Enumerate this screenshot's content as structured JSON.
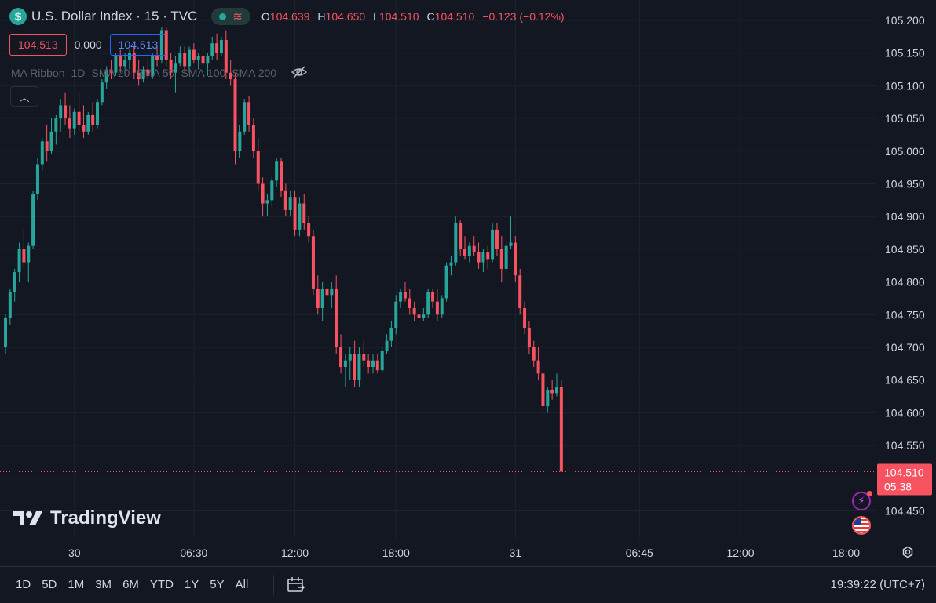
{
  "header": {
    "symbol_icon": "$",
    "title": "U.S. Dollar Index · 15 · TVC",
    "ohlc": {
      "o_label": "O",
      "o": "104.639",
      "h_label": "H",
      "h": "104.650",
      "l_label": "L",
      "l": "104.510",
      "c_label": "C",
      "c": "104.510",
      "change": "−0.123 (−0.12%)"
    },
    "bid": "104.513",
    "spread": "0.000",
    "ask": "104.513",
    "indicator": [
      "MA Ribbon",
      "1D",
      "SMA 20",
      "SMA 50",
      "SMA 100",
      "SMA 200"
    ],
    "collapse_icon": "chevron-up-icon"
  },
  "brand": {
    "logo_text": "TradingView"
  },
  "toolbar": {
    "timeframes": [
      "1D",
      "5D",
      "1M",
      "3M",
      "6M",
      "YTD",
      "1Y",
      "5Y",
      "All"
    ],
    "clock": "19:39:22 (UTC+7)"
  },
  "colors": {
    "up": "#26a69a",
    "down": "#f7525f",
    "bg": "#131722",
    "grid": "#1e222d",
    "axis_text": "#d1d4dc"
  },
  "chart_data": {
    "type": "candlestick",
    "title": "U.S. Dollar Index · 15 · TVC",
    "ylim": [
      104.42,
      105.22
    ],
    "yticks": [
      "105.200",
      "105.150",
      "105.100",
      "105.050",
      "105.000",
      "104.950",
      "104.900",
      "104.850",
      "104.800",
      "104.750",
      "104.700",
      "104.650",
      "104.600",
      "104.550",
      "104.500",
      "104.450"
    ],
    "xticks": [
      {
        "label": "30",
        "index": 15
      },
      {
        "label": "06:30",
        "index": 41
      },
      {
        "label": "12:00",
        "index": 63
      },
      {
        "label": "18:00",
        "index": 85
      },
      {
        "label": "31",
        "index": 111
      },
      {
        "label": "06:45",
        "index": 138
      },
      {
        "label": "12:00",
        "index": 160
      },
      {
        "label": "18:00",
        "index": 183
      }
    ],
    "last_price": {
      "value": 104.51,
      "label": "104.510",
      "countdown": "05:38"
    },
    "grid": true,
    "candles": [
      [
        104.7,
        104.75,
        104.69,
        104.745
      ],
      [
        104.745,
        104.79,
        104.735,
        104.785
      ],
      [
        104.785,
        104.82,
        104.77,
        104.815
      ],
      [
        104.815,
        104.86,
        104.8,
        104.85
      ],
      [
        104.85,
        104.88,
        104.82,
        104.83
      ],
      [
        104.83,
        104.86,
        104.8,
        104.855
      ],
      [
        104.855,
        104.94,
        104.85,
        104.935
      ],
      [
        104.935,
        104.99,
        104.925,
        104.98
      ],
      [
        104.98,
        105.02,
        104.97,
        105.015
      ],
      [
        105.015,
        105.04,
        104.985,
        105.0
      ],
      [
        105.0,
        105.05,
        104.995,
        105.03
      ],
      [
        105.03,
        105.055,
        105.01,
        105.05
      ],
      [
        105.05,
        105.08,
        105.03,
        105.07
      ],
      [
        105.07,
        105.09,
        105.04,
        105.05
      ],
      [
        105.05,
        105.07,
        105.02,
        105.035
      ],
      [
        105.035,
        105.065,
        105.025,
        105.06
      ],
      [
        105.06,
        105.09,
        105.03,
        105.04
      ],
      [
        105.04,
        105.07,
        105.02,
        105.03
      ],
      [
        105.03,
        105.06,
        105.025,
        105.055
      ],
      [
        105.055,
        105.075,
        105.03,
        105.04
      ],
      [
        105.04,
        105.08,
        105.035,
        105.075
      ],
      [
        105.075,
        105.11,
        105.07,
        105.105
      ],
      [
        105.105,
        105.13,
        105.095,
        105.125
      ],
      [
        105.125,
        105.14,
        105.11,
        105.12
      ],
      [
        105.12,
        105.15,
        105.115,
        105.145
      ],
      [
        105.145,
        105.155,
        105.12,
        105.13
      ],
      [
        105.13,
        105.15,
        105.115,
        105.14
      ],
      [
        105.14,
        105.155,
        105.125,
        105.15
      ],
      [
        105.15,
        105.16,
        105.11,
        105.12
      ],
      [
        105.12,
        105.14,
        105.1,
        105.11
      ],
      [
        105.11,
        105.13,
        105.105,
        105.125
      ],
      [
        105.125,
        105.14,
        105.11,
        105.115
      ],
      [
        105.115,
        105.15,
        105.11,
        105.145
      ],
      [
        105.145,
        105.16,
        105.13,
        105.14
      ],
      [
        105.14,
        105.19,
        105.135,
        105.185
      ],
      [
        105.185,
        105.19,
        105.13,
        105.14
      ],
      [
        105.14,
        105.15,
        105.11,
        105.12
      ],
      [
        105.12,
        105.145,
        105.09,
        105.135
      ],
      [
        105.135,
        105.16,
        105.13,
        105.15
      ],
      [
        105.15,
        105.16,
        105.12,
        105.13
      ],
      [
        105.13,
        105.16,
        105.12,
        105.155
      ],
      [
        105.155,
        105.165,
        105.135,
        105.14
      ],
      [
        105.14,
        105.15,
        105.125,
        105.145
      ],
      [
        105.145,
        105.16,
        105.13,
        105.135
      ],
      [
        105.135,
        105.15,
        105.115,
        105.145
      ],
      [
        105.145,
        105.175,
        105.14,
        105.165
      ],
      [
        105.165,
        105.18,
        105.14,
        105.15
      ],
      [
        105.15,
        105.175,
        105.145,
        105.17
      ],
      [
        105.17,
        105.185,
        105.11,
        105.12
      ],
      [
        105.12,
        105.14,
        105.1,
        105.11
      ],
      [
        105.11,
        105.12,
        104.98,
        105.0
      ],
      [
        105.0,
        105.04,
        104.99,
        105.03
      ],
      [
        105.03,
        105.08,
        105.025,
        105.075
      ],
      [
        105.075,
        105.085,
        105.03,
        105.04
      ],
      [
        105.04,
        105.05,
        104.99,
        105.0
      ],
      [
        105.0,
        105.02,
        104.94,
        104.95
      ],
      [
        104.95,
        104.96,
        104.9,
        104.92
      ],
      [
        104.92,
        104.935,
        104.9,
        104.925
      ],
      [
        104.925,
        104.96,
        104.915,
        104.955
      ],
      [
        104.955,
        104.99,
        104.945,
        104.985
      ],
      [
        104.985,
        104.99,
        104.93,
        104.94
      ],
      [
        104.94,
        104.95,
        104.9,
        104.91
      ],
      [
        104.91,
        104.94,
        104.9,
        104.93
      ],
      [
        104.93,
        104.94,
        104.87,
        104.88
      ],
      [
        104.88,
        104.93,
        104.87,
        104.92
      ],
      [
        104.92,
        104.935,
        104.88,
        104.89
      ],
      [
        104.89,
        104.9,
        104.86,
        104.87
      ],
      [
        104.87,
        104.88,
        104.78,
        104.79
      ],
      [
        104.79,
        104.81,
        104.75,
        104.76
      ],
      [
        104.76,
        104.8,
        104.74,
        104.79
      ],
      [
        104.79,
        104.81,
        104.77,
        104.78
      ],
      [
        104.78,
        104.8,
        104.76,
        104.79
      ],
      [
        104.79,
        104.81,
        104.69,
        104.7
      ],
      [
        104.7,
        104.72,
        104.66,
        104.67
      ],
      [
        104.67,
        104.69,
        104.64,
        104.68
      ],
      [
        104.68,
        104.7,
        104.65,
        104.69
      ],
      [
        104.69,
        104.71,
        104.64,
        104.65
      ],
      [
        104.65,
        104.7,
        104.64,
        104.69
      ],
      [
        104.69,
        104.71,
        104.67,
        104.68
      ],
      [
        104.68,
        104.69,
        104.66,
        104.67
      ],
      [
        104.67,
        104.69,
        104.66,
        104.68
      ],
      [
        104.68,
        104.69,
        104.66,
        104.665
      ],
      [
        104.665,
        104.7,
        104.66,
        104.695
      ],
      [
        104.695,
        104.72,
        104.69,
        104.71
      ],
      [
        104.71,
        104.74,
        104.7,
        104.73
      ],
      [
        104.73,
        104.78,
        104.72,
        104.77
      ],
      [
        104.77,
        104.79,
        104.76,
        104.785
      ],
      [
        104.785,
        104.8,
        104.77,
        104.775
      ],
      [
        104.775,
        104.79,
        104.75,
        104.76
      ],
      [
        104.76,
        104.77,
        104.74,
        104.75
      ],
      [
        104.75,
        104.76,
        104.74,
        104.745
      ],
      [
        104.745,
        104.76,
        104.74,
        104.75
      ],
      [
        104.75,
        104.79,
        104.745,
        104.785
      ],
      [
        104.785,
        104.79,
        104.76,
        104.77
      ],
      [
        104.77,
        104.79,
        104.74,
        104.75
      ],
      [
        104.75,
        104.78,
        104.745,
        104.775
      ],
      [
        104.775,
        104.83,
        104.77,
        104.825
      ],
      [
        104.825,
        104.84,
        104.81,
        104.83
      ],
      [
        104.83,
        104.9,
        104.825,
        104.89
      ],
      [
        104.89,
        104.895,
        104.84,
        104.85
      ],
      [
        104.85,
        104.87,
        104.835,
        104.84
      ],
      [
        104.84,
        104.86,
        104.83,
        104.855
      ],
      [
        104.855,
        104.87,
        104.84,
        104.845
      ],
      [
        104.845,
        104.86,
        104.82,
        104.83
      ],
      [
        104.83,
        104.85,
        104.815,
        104.845
      ],
      [
        104.845,
        104.855,
        104.82,
        104.835
      ],
      [
        104.835,
        104.89,
        104.83,
        104.88
      ],
      [
        104.88,
        104.89,
        104.84,
        104.85
      ],
      [
        104.85,
        104.87,
        104.8,
        104.82
      ],
      [
        104.82,
        104.86,
        104.815,
        104.855
      ],
      [
        104.855,
        104.9,
        104.85,
        104.86
      ],
      [
        104.86,
        104.87,
        104.8,
        104.81
      ],
      [
        104.81,
        104.82,
        104.75,
        104.76
      ],
      [
        104.76,
        104.77,
        104.72,
        104.73
      ],
      [
        104.73,
        104.74,
        104.69,
        104.7
      ],
      [
        104.7,
        104.71,
        104.67,
        104.68
      ],
      [
        104.68,
        104.7,
        104.65,
        104.66
      ],
      [
        104.66,
        104.67,
        104.6,
        104.61
      ],
      [
        104.61,
        104.64,
        104.6,
        104.635
      ],
      [
        104.635,
        104.65,
        104.62,
        104.63
      ],
      [
        104.63,
        104.66,
        104.625,
        104.64
      ],
      [
        104.64,
        104.65,
        104.51,
        104.51
      ]
    ]
  }
}
